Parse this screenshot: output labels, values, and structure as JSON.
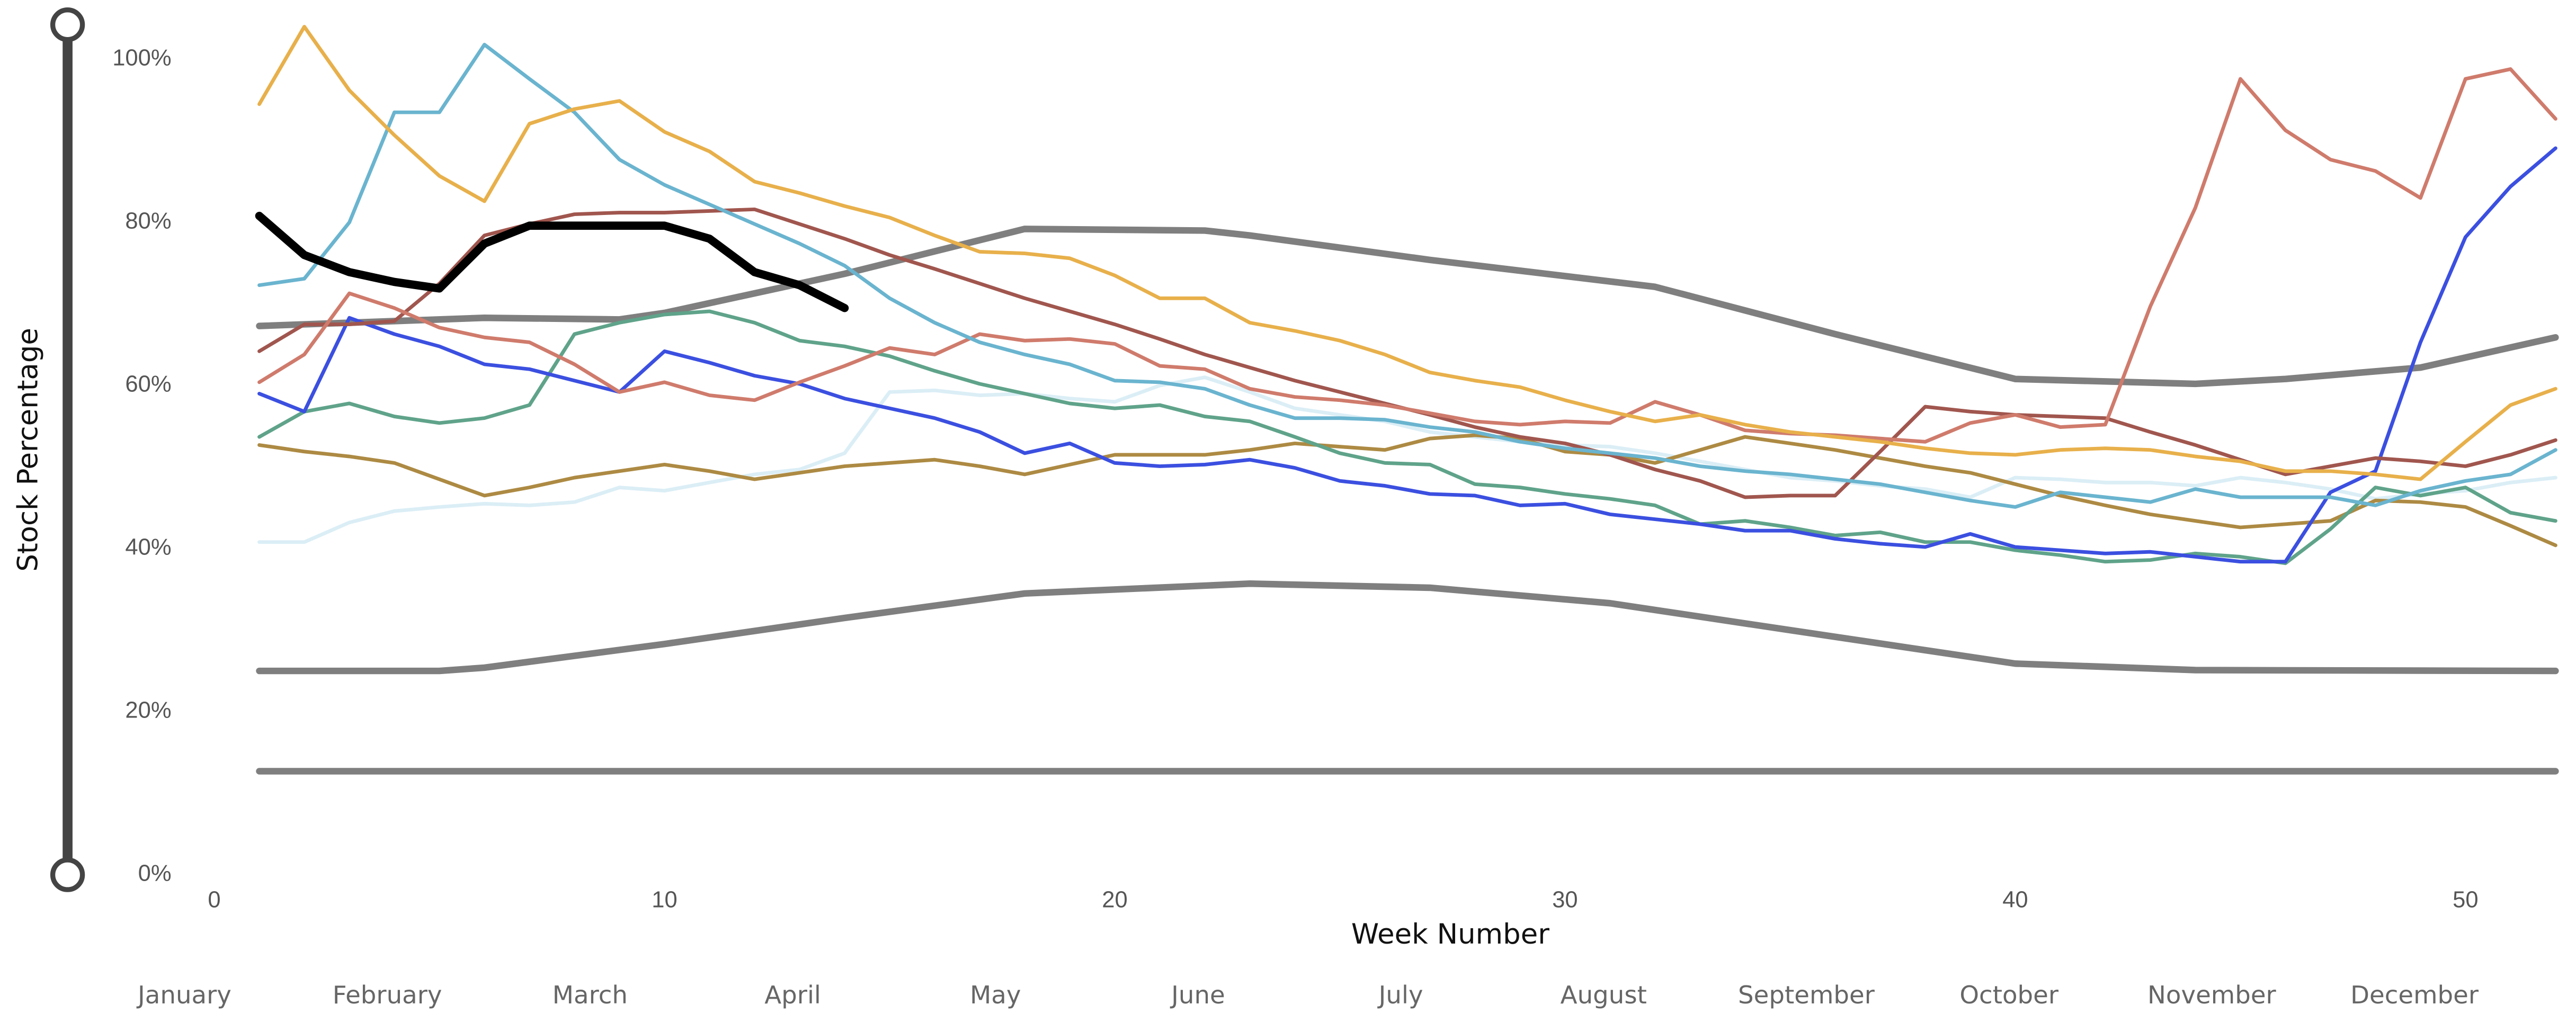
{
  "chart_data": {
    "type": "line",
    "y_label": "Stock Percentage",
    "x_label": "Week Number",
    "month_labels": [
      "January",
      "February",
      "March",
      "April",
      "May",
      "June",
      "July",
      "August",
      "September",
      "October",
      "November",
      "December"
    ],
    "xlim": [
      0,
      52
    ],
    "xticks": [
      0,
      10,
      20,
      30,
      40,
      50
    ],
    "ylim": [
      0,
      105
    ],
    "yticks": [
      {
        "value": 0,
        "label": "0%"
      },
      {
        "value": 20,
        "label": "20%"
      },
      {
        "value": 40,
        "label": "40%"
      },
      {
        "value": 60,
        "label": "60%"
      },
      {
        "value": 80,
        "label": "80%"
      },
      {
        "value": 100,
        "label": "100%"
      }
    ],
    "x": [
      1,
      2,
      3,
      4,
      5,
      6,
      7,
      8,
      9,
      10,
      11,
      12,
      13,
      14,
      15,
      16,
      17,
      18,
      19,
      20,
      21,
      22,
      23,
      24,
      25,
      26,
      27,
      28,
      29,
      30,
      31,
      32,
      33,
      34,
      35,
      36,
      37,
      38,
      39,
      40,
      41,
      42,
      43,
      44,
      45,
      46,
      47,
      48,
      49,
      50,
      51,
      52
    ],
    "series": [
      {
        "color": "#7f7f7f",
        "width": 4,
        "x": [
          1,
          52
        ],
        "values": [
          12.7,
          12.7
        ]
      },
      {
        "color": "#7f7f7f",
        "width": 4,
        "x": [
          1,
          5,
          6,
          10,
          14,
          18,
          23,
          27,
          31,
          35,
          40,
          44,
          52
        ],
        "values": [
          25,
          25,
          25.4,
          28.3,
          31.5,
          34.5,
          35.7,
          35.2,
          33.3,
          30,
          25.9,
          25.1,
          25
        ]
      },
      {
        "color": "#7f7f7f",
        "width": 4,
        "x": [
          1,
          6,
          9,
          10,
          14,
          18,
          22,
          23,
          27,
          32,
          36,
          40,
          44,
          46,
          49,
          52
        ],
        "values": [
          67.3,
          68.3,
          68.1,
          68.9,
          73.7,
          79.2,
          79,
          78.4,
          75.4,
          72.1,
          66.3,
          60.8,
          60.2,
          60.8,
          62.2,
          65.9
        ]
      },
      {
        "color": "#dbeef6",
        "width": 2.2,
        "values": [
          40.8,
          40.8,
          43.2,
          44.6,
          45.1,
          45.5,
          45.3,
          45.7,
          47.5,
          47.1,
          48.1,
          49.1,
          49.7,
          51.7,
          59.2,
          59.4,
          58.8,
          59,
          58.4,
          58,
          60,
          61,
          59.2,
          57.2,
          56.4,
          55.6,
          54.3,
          53.7,
          53.1,
          52.7,
          52.5,
          51.7,
          50.7,
          49.7,
          48.7,
          48.3,
          47.7,
          47.3,
          46.3,
          48.7,
          48.5,
          48.1,
          48.1,
          47.7,
          48.7,
          48.1,
          47.3,
          46.1,
          46.7,
          47.1,
          48.1,
          48.7
        ]
      },
      {
        "color": "#ad8a43",
        "width": 2.2,
        "values": [
          52.7,
          51.9,
          51.3,
          50.5,
          48.5,
          46.5,
          47.5,
          48.7,
          49.5,
          50.3,
          49.5,
          48.5,
          49.3,
          50.1,
          50.5,
          50.9,
          50.1,
          49.1,
          50.3,
          51.5,
          51.5,
          51.5,
          52.1,
          52.9,
          52.5,
          52.1,
          53.5,
          53.9,
          53.5,
          51.9,
          51.5,
          50.5,
          52.1,
          53.7,
          52.9,
          52.1,
          51.1,
          50.1,
          49.3,
          47.9,
          46.5,
          45.3,
          44.2,
          43.4,
          42.6,
          43,
          43.4,
          45.9,
          45.7,
          45.1,
          42.8,
          40.4
        ]
      },
      {
        "color": "#5fa38a",
        "width": 2.2,
        "values": [
          53.7,
          56.8,
          57.8,
          56.2,
          55.4,
          56,
          57.6,
          66.3,
          67.7,
          68.7,
          69.1,
          67.7,
          65.5,
          64.8,
          63.6,
          61.8,
          60.2,
          59,
          57.8,
          57.2,
          57.6,
          56.2,
          55.6,
          53.7,
          51.7,
          50.5,
          50.3,
          47.9,
          47.5,
          46.7,
          46.1,
          45.3,
          43,
          43.4,
          42.6,
          41.6,
          42,
          40.8,
          40.8,
          39.8,
          39.2,
          38.4,
          38.6,
          39.4,
          39,
          38.2,
          42.4,
          47.5,
          46.5,
          47.5,
          44.4,
          43.4
        ]
      },
      {
        "color": "#3b4fe0",
        "width": 2.2,
        "values": [
          59,
          56.8,
          68.3,
          66.3,
          64.8,
          62.6,
          62,
          60.6,
          59.2,
          64.2,
          62.8,
          61.2,
          60.2,
          58.4,
          57.2,
          56,
          54.3,
          51.7,
          52.9,
          50.5,
          50.1,
          50.3,
          50.9,
          49.9,
          48.3,
          47.7,
          46.7,
          46.5,
          45.3,
          45.5,
          44.2,
          43.6,
          43,
          42.2,
          42.2,
          41.2,
          40.6,
          40.2,
          41.8,
          40.2,
          39.8,
          39.4,
          39.6,
          39,
          38.4,
          38.4,
          46.9,
          49.5,
          65.3,
          78.2,
          84.4,
          89.1
        ]
      },
      {
        "color": "#a0564e",
        "width": 2.2,
        "values": [
          64.2,
          67.5,
          67.5,
          67.9,
          72.5,
          78.4,
          79.8,
          81,
          81.2,
          81.2,
          81.4,
          81.6,
          79.8,
          78,
          76,
          74.3,
          72.5,
          70.7,
          69.1,
          67.5,
          65.7,
          63.8,
          62.2,
          60.6,
          59.2,
          57.8,
          56.4,
          54.9,
          53.7,
          52.9,
          51.5,
          49.7,
          48.3,
          46.3,
          46.5,
          46.5,
          51.9,
          57.4,
          56.8,
          56.4,
          56.2,
          56,
          54.3,
          52.7,
          50.9,
          49.1,
          50.1,
          51.1,
          50.7,
          50.1,
          51.5,
          53.3
        ]
      },
      {
        "color": "#cf7b6c",
        "width": 2.2,
        "values": [
          60.4,
          63.8,
          71.3,
          69.5,
          67.1,
          65.9,
          65.3,
          62.6,
          59.2,
          60.4,
          58.8,
          58.2,
          60.4,
          62.4,
          64.6,
          63.8,
          66.3,
          65.5,
          65.7,
          65.1,
          62.4,
          62,
          59.6,
          58.6,
          58.2,
          57.6,
          56.6,
          55.6,
          55.2,
          55.6,
          55.4,
          58,
          56.4,
          54.5,
          54.1,
          53.9,
          53.5,
          53.1,
          55.4,
          56.4,
          54.9,
          55.2,
          69.7,
          81.8,
          97.6,
          91.3,
          87.7,
          86.3,
          83,
          97.6,
          98.8,
          92.7
        ]
      },
      {
        "color": "#6ab4cf",
        "width": 2.2,
        "values": [
          72.3,
          73.1,
          80,
          93.5,
          93.5,
          101.8,
          97.6,
          93.5,
          87.7,
          84.6,
          82.2,
          79.8,
          77.4,
          74.7,
          70.7,
          67.7,
          65.3,
          63.8,
          62.6,
          60.6,
          60.4,
          59.6,
          57.6,
          56,
          56,
          55.8,
          54.9,
          54.3,
          53.1,
          52.3,
          51.7,
          51.1,
          50.1,
          49.5,
          49.1,
          48.5,
          47.9,
          46.9,
          45.9,
          45.1,
          46.9,
          46.3,
          45.7,
          47.3,
          46.3,
          46.3,
          46.3,
          45.3,
          47.1,
          48.3,
          49.1,
          52.1
        ]
      },
      {
        "color": "#e8b04b",
        "width": 2.2,
        "values": [
          94.5,
          104,
          96.2,
          90.7,
          85.7,
          82.6,
          92.1,
          93.9,
          94.9,
          91.1,
          88.7,
          85,
          83.6,
          82,
          80.6,
          78.4,
          76.4,
          76.2,
          75.6,
          73.5,
          70.7,
          70.7,
          67.7,
          66.7,
          65.5,
          63.8,
          61.6,
          60.6,
          59.8,
          58.2,
          56.8,
          55.6,
          56.4,
          55.2,
          54.3,
          53.7,
          53.1,
          52.3,
          51.7,
          51.5,
          52.1,
          52.3,
          52.1,
          51.3,
          50.7,
          49.5,
          49.5,
          49.1,
          48.5,
          53.1,
          57.6,
          59.6
        ]
      },
      {
        "color": "#000000",
        "width": 5,
        "values": [
          80.8,
          76,
          73.9,
          72.7,
          71.9,
          77.4,
          79.6,
          79.6,
          79.6,
          79.6,
          78,
          73.9,
          72.3,
          69.5,
          null,
          null,
          null,
          null,
          null,
          null,
          null,
          null,
          null,
          null,
          null,
          null,
          null,
          null,
          null,
          null,
          null,
          null,
          null,
          null,
          null,
          null,
          null,
          null,
          null,
          null,
          null,
          null,
          null,
          null,
          null,
          null,
          null,
          null,
          null,
          null,
          null,
          null
        ]
      }
    ]
  }
}
